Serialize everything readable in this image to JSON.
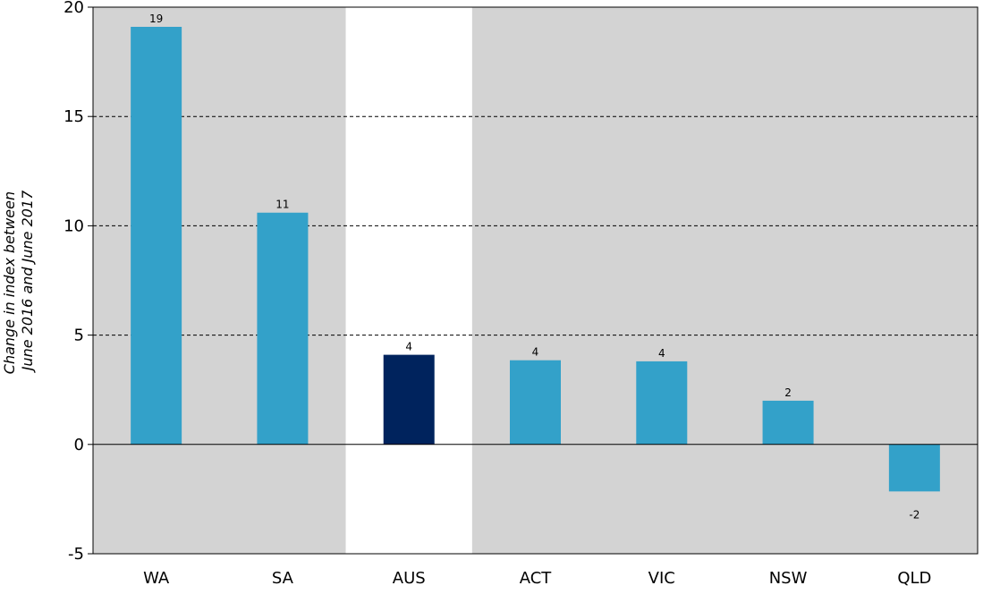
{
  "chart_data": {
    "type": "bar",
    "title": "",
    "xlabel": "",
    "ylabel_lines": [
      "Change in index between",
      "June 2016 and June 2017"
    ],
    "categories": [
      "WA",
      "SA",
      "AUS",
      "ACT",
      "VIC",
      "NSW",
      "QLD"
    ],
    "values": [
      19.1,
      10.6,
      4.1,
      3.85,
      3.8,
      2.0,
      -2.15
    ],
    "data_labels": [
      "19",
      "11",
      "4",
      "4",
      "4",
      "2",
      "-2"
    ],
    "highlight_category": "AUS",
    "ylim": [
      -5,
      20
    ],
    "yticks": [
      -5,
      0,
      5,
      10,
      15,
      20
    ],
    "grid": "dashed horizontal",
    "colors": {
      "bar": "#33a1c9",
      "highlight_bar": "#00235d",
      "background_band": "#d3d3d3",
      "highlight_band": "#ffffff",
      "grid": "#000000"
    }
  }
}
